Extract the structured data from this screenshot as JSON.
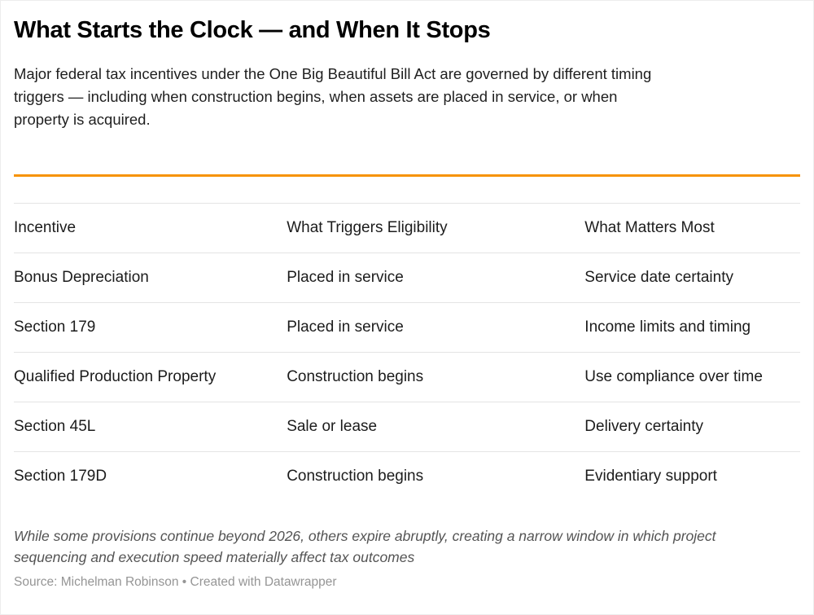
{
  "accent_color": "#f79305",
  "chart_data": {
    "type": "table",
    "title": "What Starts the Clock — and When It Stops",
    "description_lines": [
      "Major federal tax incentives under the One Big Beautiful Bill Act are governed by different timing",
      "triggers — including when construction begins, when assets are placed in service, or when",
      "property is acquired."
    ],
    "columns": [
      "Incentive",
      "What Triggers Eligibility",
      "What Matters Most"
    ],
    "rows": [
      [
        "Bonus Depreciation",
        "Placed in service",
        "Service date certainty"
      ],
      [
        "Section 179",
        "Placed in service",
        "Income limits and timing"
      ],
      [
        "Qualified Production Property",
        "Construction begins",
        "Use compliance over time"
      ],
      [
        "Section 45L",
        "Sale or lease",
        "Delivery certainty"
      ],
      [
        "Section 179D",
        "Construction begins",
        "Evidentiary support"
      ]
    ],
    "note_lines": [
      "While some provisions continue beyond 2026, others expire abruptly, creating a narrow window in which project",
      "sequencing and execution speed materially affect tax outcomes"
    ],
    "source": "Source: Michelman Robinson • Created with Datawrapper"
  }
}
